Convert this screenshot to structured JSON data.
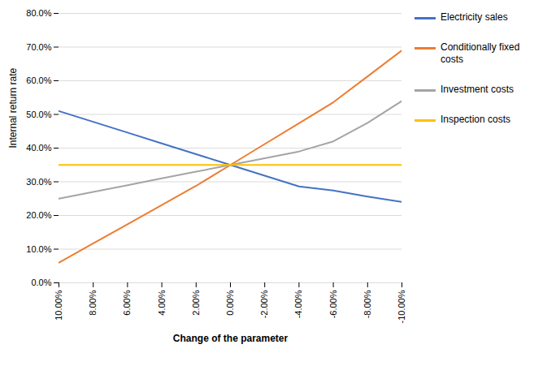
{
  "chart_data": {
    "type": "line",
    "xlabel": "Change of the parameter",
    "ylabel": "Internal return rate",
    "x": [
      10,
      8,
      6,
      4,
      2,
      0,
      -2,
      -4,
      -6,
      -8,
      -10
    ],
    "xlim": [
      10,
      -10
    ],
    "xticks": [
      {
        "value": 10,
        "label": "10.00%"
      },
      {
        "value": 8,
        "label": "8.00%"
      },
      {
        "value": 6,
        "label": "6.00%"
      },
      {
        "value": 4,
        "label": "4.00%"
      },
      {
        "value": 2,
        "label": "2.00%"
      },
      {
        "value": 0,
        "label": "0.00%"
      },
      {
        "value": -2,
        "label": "-2.00%"
      },
      {
        "value": -4,
        "label": "-4.00%"
      },
      {
        "value": -6,
        "label": "-6.00%"
      },
      {
        "value": -8,
        "label": "-8.00%"
      },
      {
        "value": -10,
        "label": "-10.00%"
      }
    ],
    "ylim": [
      0.0,
      0.8
    ],
    "yticks": [
      {
        "value": 0.0,
        "label": "0.0%"
      },
      {
        "value": 0.1,
        "label": "10.0%"
      },
      {
        "value": 0.2,
        "label": "20.0%"
      },
      {
        "value": 0.3,
        "label": "30.0%"
      },
      {
        "value": 0.4,
        "label": "40.0%"
      },
      {
        "value": 0.5,
        "label": "50.0%"
      },
      {
        "value": 0.6,
        "label": "60.0%"
      },
      {
        "value": 0.7,
        "label": "70.0%"
      },
      {
        "value": 0.8,
        "label": "80.0%"
      }
    ],
    "grid": true,
    "legend": "right",
    "series": [
      {
        "name": "Electricity sales",
        "color": "#4472C4",
        "values": [
          0.51,
          0.478,
          0.446,
          0.414,
          0.382,
          0.35,
          0.318,
          0.286,
          0.274,
          0.256,
          0.24
        ]
      },
      {
        "name": "Conditionally fixed\ncosts",
        "color": "#ED7D31",
        "values": [
          0.06,
          0.117,
          0.174,
          0.231,
          0.288,
          0.35,
          0.412,
          0.474,
          0.536,
          0.613,
          0.69
        ]
      },
      {
        "name": "Investment costs",
        "color": "#A5A5A5",
        "values": [
          0.25,
          0.27,
          0.29,
          0.31,
          0.33,
          0.35,
          0.37,
          0.39,
          0.42,
          0.475,
          0.54
        ]
      },
      {
        "name": "Inspection costs",
        "color": "#FFC000",
        "values": [
          0.35,
          0.35,
          0.35,
          0.35,
          0.35,
          0.35,
          0.35,
          0.35,
          0.35,
          0.35,
          0.35
        ]
      }
    ]
  }
}
